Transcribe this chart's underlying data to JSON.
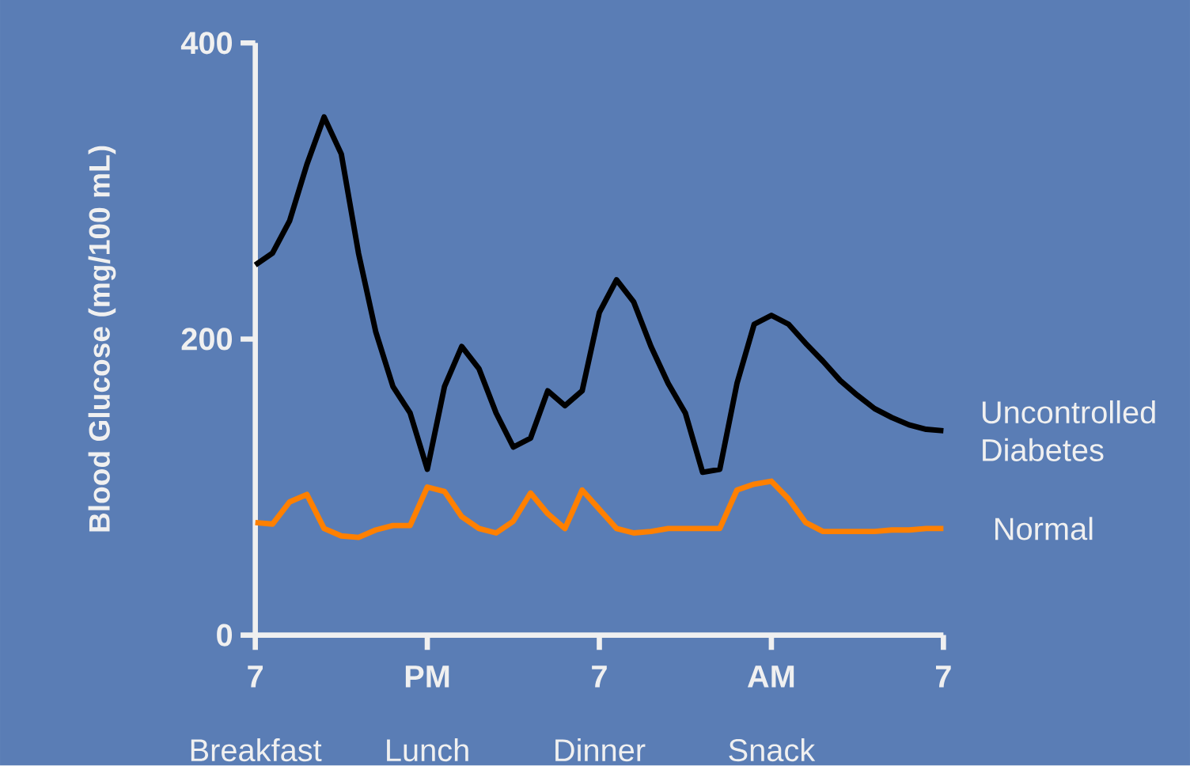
{
  "chart_data": {
    "type": "line",
    "ylabel": "Blood Glucose (mg/100 mL)",
    "categories": [
      "7",
      null,
      null,
      null,
      null,
      null,
      null,
      null,
      null,
      null,
      "PM",
      null,
      null,
      null,
      null,
      null,
      null,
      null,
      null,
      null,
      "7",
      null,
      null,
      null,
      null,
      null,
      null,
      null,
      null,
      null,
      "AM",
      null,
      null,
      null,
      null,
      null,
      null,
      null,
      null,
      null,
      "7"
    ],
    "series": [
      {
        "name": "Uncontrolled Diabetes",
        "color": "#000000",
        "values": [
          250,
          258,
          280,
          318,
          350,
          325,
          258,
          205,
          168,
          150,
          112,
          168,
          195,
          180,
          150,
          127,
          133,
          165,
          155,
          165,
          218,
          240,
          225,
          195,
          170,
          150,
          110,
          112,
          170,
          210,
          216,
          210,
          197,
          185,
          172,
          162,
          153,
          147,
          142,
          139,
          138
        ]
      },
      {
        "name": "Normal",
        "color": "#ff8000",
        "values": [
          76,
          75,
          90,
          95,
          72,
          67,
          66,
          71,
          74,
          74,
          100,
          97,
          80,
          72,
          69,
          77,
          96,
          82,
          72,
          98,
          85,
          72,
          69,
          70,
          72,
          72,
          72,
          72,
          98,
          102,
          104,
          92,
          76,
          70,
          70,
          70,
          70,
          71,
          71,
          72,
          72
        ]
      }
    ],
    "ylim": [
      0,
      400
    ],
    "yticks": [
      0,
      200,
      400
    ],
    "line_style": "solid",
    "annotations": [
      "Breakfast",
      "Lunch",
      "Dinner",
      "Snack"
    ]
  }
}
